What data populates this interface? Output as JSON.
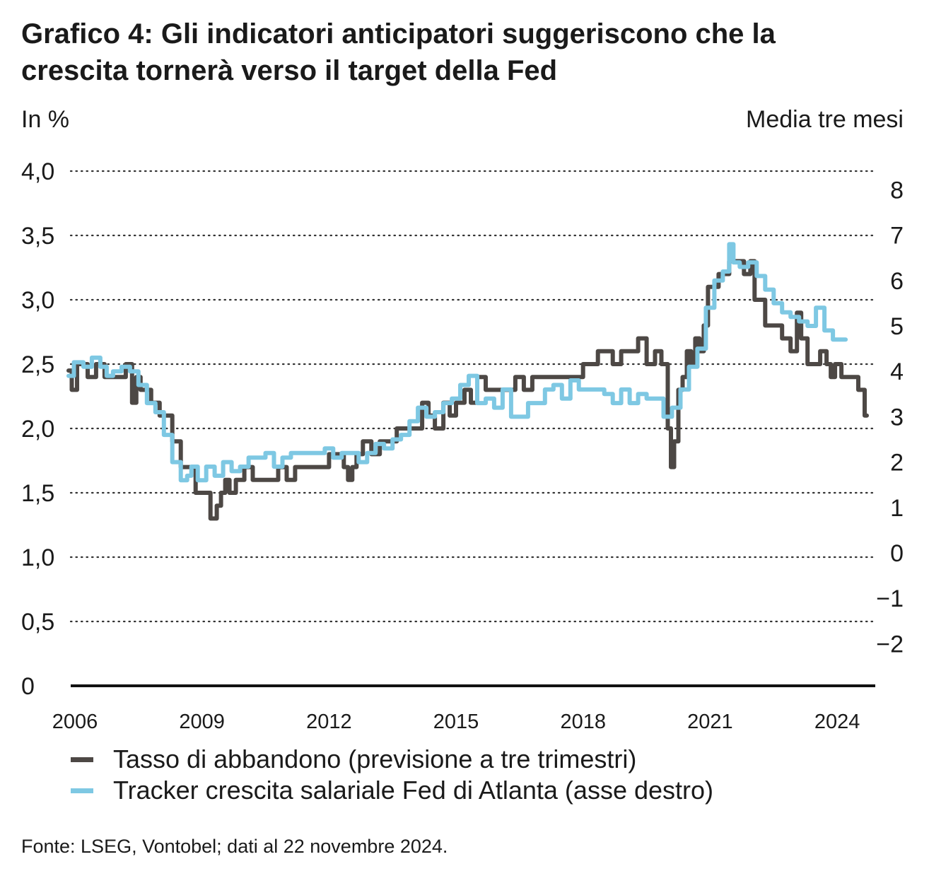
{
  "title_lines": [
    "Grafico 4: Gli indicatori anticipatori suggeriscono che la",
    "crescita tornerà verso il target della Fed"
  ],
  "units": {
    "left": "In %",
    "right": "Media tre mesi"
  },
  "legend": [
    {
      "label": "Tasso di abbandono (previsione a tre trimestri)",
      "color": "#4d4845"
    },
    {
      "label": "Tracker crescita salariale Fed di Atlanta (asse destro)",
      "color": "#7ec8e3"
    }
  ],
  "source": "Fonte: LSEG, Vontobel; dati al 22 novembre 2024.",
  "chart_data": {
    "type": "line",
    "title": "Grafico 4: Gli indicatori anticipatori suggeriscono che la crescita tornerà verso il target della Fed",
    "x_ticks": [
      "2006",
      "2009",
      "2012",
      "2015",
      "2018",
      "2021",
      "2024"
    ],
    "x_range": [
      2006,
      2025
    ],
    "left_axis": {
      "label": "In %",
      "ticks": [
        "0",
        "0,5",
        "1,0",
        "1,5",
        "2,0",
        "2,5",
        "3,0",
        "3,5",
        "4,0"
      ],
      "range": [
        0,
        4.0
      ]
    },
    "right_axis": {
      "label": "Media tre mesi",
      "ticks": [
        "−2",
        "−1",
        "0",
        "1",
        "2",
        "3",
        "4",
        "5",
        "6",
        "7",
        "8"
      ],
      "range": [
        -2,
        8
      ]
    },
    "grid": "dotted horizontal",
    "legend_position": "bottom",
    "series": [
      {
        "name": "Tasso di abbandono (previsione a tre trimestri)",
        "axis": "left",
        "color": "#4d4845",
        "x": [
          2005.95,
          2006.1,
          2006.2,
          2006.3,
          2006.5,
          2006.7,
          2006.9,
          2007.0,
          2007.2,
          2007.4,
          2007.5,
          2007.6,
          2007.7,
          2007.8,
          2008.0,
          2008.2,
          2008.3,
          2008.5,
          2008.7,
          2008.9,
          2009.0,
          2009.2,
          2009.4,
          2009.5,
          2009.6,
          2009.7,
          2009.8,
          2010.0,
          2010.2,
          2010.4,
          2010.6,
          2010.8,
          2011.0,
          2011.2,
          2011.4,
          2011.6,
          2011.8,
          2012.0,
          2012.2,
          2012.4,
          2012.5,
          2012.6,
          2012.7,
          2012.8,
          2013.0,
          2013.2,
          2013.4,
          2013.6,
          2013.8,
          2014.0,
          2014.2,
          2014.4,
          2014.5,
          2014.7,
          2014.9,
          2015.0,
          2015.2,
          2015.4,
          2015.5,
          2015.7,
          2015.9,
          2016.0,
          2016.2,
          2016.4,
          2016.6,
          2016.8,
          2017.0,
          2017.2,
          2017.4,
          2017.6,
          2017.8,
          2018.0,
          2018.2,
          2018.4,
          2018.5,
          2018.7,
          2018.9,
          2019.1,
          2019.3,
          2019.5,
          2019.7,
          2019.9,
          2020.0,
          2020.05,
          2020.15,
          2020.2,
          2020.3,
          2020.4,
          2020.5,
          2020.6,
          2020.7,
          2020.8,
          2020.9,
          2021.0,
          2021.1,
          2021.2,
          2021.4,
          2021.5,
          2021.6,
          2021.8,
          2022.0,
          2022.1,
          2022.2,
          2022.3,
          2022.5,
          2022.7,
          2022.9,
          2023.1,
          2023.2,
          2023.3,
          2023.5,
          2023.6,
          2023.8,
          2023.9,
          2024.0,
          2024.1,
          2024.3,
          2024.5,
          2024.7,
          2024.8
        ],
        "values": [
          2.45,
          2.3,
          2.5,
          2.5,
          2.4,
          2.5,
          2.4,
          2.4,
          2.4,
          2.5,
          2.2,
          2.4,
          2.3,
          2.3,
          2.2,
          2.1,
          2.1,
          1.9,
          1.7,
          1.7,
          1.5,
          1.5,
          1.3,
          1.4,
          1.5,
          1.6,
          1.5,
          1.6,
          1.7,
          1.6,
          1.6,
          1.6,
          1.7,
          1.6,
          1.7,
          1.7,
          1.7,
          1.7,
          1.8,
          1.8,
          1.7,
          1.6,
          1.7,
          1.8,
          1.9,
          1.8,
          1.9,
          1.9,
          2.0,
          2.0,
          2.0,
          2.2,
          2.1,
          2.0,
          2.2,
          2.1,
          2.2,
          2.3,
          2.2,
          2.4,
          2.3,
          2.3,
          2.3,
          2.3,
          2.4,
          2.3,
          2.4,
          2.4,
          2.4,
          2.4,
          2.4,
          2.4,
          2.5,
          2.5,
          2.6,
          2.6,
          2.5,
          2.6,
          2.6,
          2.7,
          2.5,
          2.6,
          2.5,
          2.5,
          2.0,
          1.7,
          1.9,
          2.3,
          2.4,
          2.6,
          2.5,
          2.7,
          2.6,
          2.8,
          3.1,
          3.1,
          3.2,
          3.2,
          3.3,
          3.3,
          3.2,
          3.3,
          3.0,
          3.0,
          2.8,
          2.8,
          2.7,
          2.6,
          2.9,
          2.7,
          2.5,
          2.5,
          2.6,
          2.5,
          2.4,
          2.5,
          2.4,
          2.4,
          2.3,
          2.1
        ]
      },
      {
        "name": "Tracker crescita salariale Fed di Atlanta (asse destro)",
        "axis": "right",
        "color": "#7ec8e3",
        "x": [
          2005.95,
          2006.2,
          2006.4,
          2006.6,
          2006.8,
          2006.9,
          2007.1,
          2007.3,
          2007.5,
          2007.7,
          2007.9,
          2008.1,
          2008.3,
          2008.5,
          2008.7,
          2008.8,
          2008.9,
          2009.1,
          2009.3,
          2009.5,
          2009.7,
          2009.9,
          2010.1,
          2010.3,
          2010.5,
          2010.7,
          2010.9,
          2011.1,
          2011.3,
          2011.5,
          2011.7,
          2011.9,
          2012.1,
          2012.3,
          2012.5,
          2012.7,
          2012.9,
          2013.1,
          2013.3,
          2013.5,
          2013.7,
          2013.9,
          2014.1,
          2014.3,
          2014.5,
          2014.7,
          2014.9,
          2015.1,
          2015.3,
          2015.5,
          2015.7,
          2015.9,
          2016.1,
          2016.3,
          2016.5,
          2016.7,
          2016.9,
          2017.1,
          2017.3,
          2017.5,
          2017.7,
          2017.9,
          2018.1,
          2018.3,
          2018.5,
          2018.7,
          2018.9,
          2019.1,
          2019.3,
          2019.5,
          2019.7,
          2019.9,
          2020.1,
          2020.3,
          2020.5,
          2020.7,
          2020.9,
          2021.1,
          2021.3,
          2021.5,
          2021.6,
          2021.7,
          2021.9,
          2022.1,
          2022.3,
          2022.5,
          2022.7,
          2022.9,
          2023.1,
          2023.3,
          2023.5,
          2023.7,
          2023.9,
          2024.1,
          2024.3
        ],
        "values": [
          3.9,
          4.2,
          4.1,
          4.3,
          4.1,
          3.9,
          4.0,
          4.1,
          4.0,
          3.7,
          3.3,
          3.1,
          2.6,
          2.0,
          1.6,
          1.7,
          1.9,
          1.6,
          1.9,
          1.7,
          2.0,
          1.8,
          1.9,
          2.1,
          2.1,
          2.2,
          1.9,
          2.1,
          2.2,
          2.2,
          2.2,
          2.2,
          2.3,
          2.1,
          2.2,
          2.2,
          2.0,
          2.2,
          2.4,
          2.3,
          2.5,
          2.6,
          2.9,
          3.2,
          3.0,
          3.1,
          3.3,
          3.4,
          3.7,
          3.9,
          3.3,
          3.4,
          3.2,
          3.6,
          3.0,
          3.0,
          3.3,
          3.3,
          3.6,
          3.7,
          3.4,
          3.8,
          3.6,
          3.6,
          3.6,
          3.5,
          3.3,
          3.6,
          3.3,
          3.5,
          3.4,
          3.4,
          3.0,
          3.2,
          3.6,
          4.1,
          4.5,
          5.4,
          6.0,
          6.2,
          6.8,
          6.4,
          6.3,
          6.4,
          6.1,
          5.8,
          5.5,
          5.3,
          5.2,
          5.1,
          5.0,
          5.4,
          4.9,
          4.7,
          4.7
        ]
      }
    ]
  }
}
